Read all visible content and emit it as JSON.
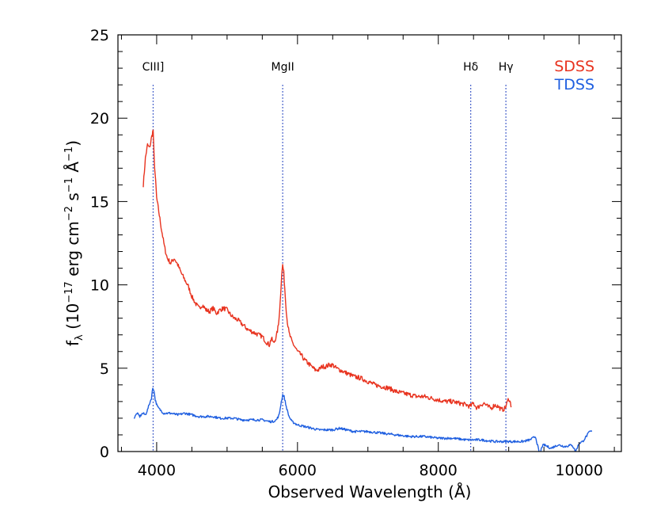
{
  "chart_data": {
    "type": "line",
    "xlabel": "Observed Wavelength (Å)",
    "ylabel": "fλ (10⁻¹⁷ erg cm⁻² s⁻¹ Å⁻¹)",
    "ylabel_parts": {
      "f": "f",
      "lambda_sub": "λ",
      "open": " (10",
      "exp1": "−17",
      "mid1": " erg cm",
      "exp2": "−2",
      "mid2": " s",
      "exp3": "−1",
      "mid3": " Å",
      "exp4": "−1",
      "close": ")"
    },
    "xlim": [
      3450,
      10600
    ],
    "ylim": [
      0,
      25
    ],
    "xticks": [
      4000,
      6000,
      8000,
      10000
    ],
    "xtick_labels": [
      "4000",
      "6000",
      "8000",
      "10000"
    ],
    "yticks": [
      0,
      5,
      10,
      15,
      20,
      25
    ],
    "ytick_labels": [
      "0",
      "5",
      "10",
      "15",
      "20",
      "25"
    ],
    "x_minor_step": 500,
    "y_minor_step": 1,
    "grid": false,
    "legend_position": "top-right",
    "reference_lines": [
      {
        "label": "CIII]",
        "x": 3950
      },
      {
        "label": "MgII",
        "x": 5790
      },
      {
        "label": "Hδ",
        "x": 8460
      },
      {
        "label": "Hγ",
        "x": 8960
      }
    ],
    "reference_line_color": "#1f3fbf",
    "series": [
      {
        "name": "SDSS",
        "color": "#e8331f",
        "x": [
          3810,
          3840,
          3870,
          3900,
          3930,
          3950,
          3965,
          3985,
          4000,
          4030,
          4070,
          4110,
          4150,
          4200,
          4250,
          4300,
          4350,
          4400,
          4450,
          4500,
          4550,
          4600,
          4650,
          4700,
          4750,
          4800,
          4850,
          4900,
          4950,
          5000,
          5050,
          5100,
          5150,
          5200,
          5250,
          5300,
          5350,
          5400,
          5450,
          5500,
          5550,
          5600,
          5630,
          5660,
          5700,
          5730,
          5755,
          5775,
          5790,
          5805,
          5825,
          5850,
          5880,
          5920,
          5960,
          6000,
          6050,
          6100,
          6150,
          6200,
          6250,
          6300,
          6350,
          6400,
          6450,
          6500,
          6550,
          6600,
          6650,
          6700,
          6750,
          6800,
          6900,
          7000,
          7100,
          7200,
          7300,
          7400,
          7500,
          7600,
          7700,
          7800,
          7900,
          8000,
          8100,
          8200,
          8300,
          8400,
          8450,
          8500,
          8550,
          8600,
          8650,
          8700,
          8750,
          8800,
          8850,
          8900,
          8950,
          9000,
          9040
        ],
        "values": [
          16.0,
          17.6,
          18.4,
          18.2,
          18.9,
          19.3,
          17.5,
          16.2,
          15.2,
          14.4,
          13.3,
          12.3,
          11.6,
          11.3,
          11.6,
          11.2,
          10.7,
          10.3,
          9.9,
          9.3,
          8.9,
          8.6,
          8.8,
          8.5,
          8.4,
          8.6,
          8.3,
          8.5,
          8.6,
          8.5,
          8.2,
          8.0,
          7.9,
          7.7,
          7.5,
          7.3,
          7.2,
          7.1,
          7.0,
          6.9,
          6.6,
          6.4,
          6.8,
          6.5,
          6.9,
          7.6,
          9.0,
          10.6,
          11.2,
          10.7,
          9.4,
          8.0,
          7.1,
          6.6,
          6.3,
          6.0,
          5.8,
          5.5,
          5.3,
          5.1,
          4.9,
          4.9,
          5.1,
          5.1,
          5.2,
          5.2,
          5.0,
          4.9,
          4.8,
          4.7,
          4.6,
          4.5,
          4.4,
          4.2,
          4.0,
          3.9,
          3.8,
          3.6,
          3.5,
          3.4,
          3.3,
          3.3,
          3.2,
          3.1,
          3.0,
          3.0,
          2.9,
          2.8,
          2.7,
          2.9,
          2.6,
          2.8,
          2.9,
          2.7,
          2.6,
          2.8,
          2.7,
          2.5,
          2.6,
          3.2,
          2.7
        ]
      },
      {
        "name": "TDSS",
        "color": "#1f5fe0",
        "x": [
          3680,
          3720,
          3760,
          3800,
          3840,
          3870,
          3900,
          3925,
          3945,
          3960,
          3980,
          4010,
          4050,
          4100,
          4200,
          4300,
          4400,
          4500,
          4600,
          4700,
          4800,
          4900,
          5000,
          5100,
          5200,
          5300,
          5400,
          5500,
          5600,
          5650,
          5700,
          5740,
          5770,
          5790,
          5810,
          5840,
          5880,
          5920,
          6000,
          6100,
          6200,
          6300,
          6400,
          6500,
          6600,
          6700,
          6800,
          6900,
          7000,
          7200,
          7400,
          7600,
          7800,
          8000,
          8200,
          8400,
          8600,
          8800,
          9000,
          9200,
          9300,
          9380,
          9420,
          9440,
          9470,
          9500,
          9550,
          9600,
          9700,
          9800,
          9900,
          9950,
          10000,
          10050,
          10100,
          10150,
          10180
        ],
        "values": [
          2.0,
          2.3,
          2.1,
          2.3,
          2.2,
          2.5,
          2.9,
          3.2,
          3.8,
          3.7,
          3.1,
          2.7,
          2.5,
          2.3,
          2.3,
          2.2,
          2.3,
          2.2,
          2.1,
          2.1,
          2.1,
          2.0,
          2.0,
          2.0,
          1.9,
          1.9,
          1.9,
          1.9,
          1.8,
          1.8,
          1.9,
          2.2,
          3.0,
          3.4,
          3.3,
          2.7,
          2.1,
          1.8,
          1.6,
          1.5,
          1.4,
          1.3,
          1.3,
          1.3,
          1.4,
          1.3,
          1.2,
          1.2,
          1.2,
          1.1,
          1.0,
          0.9,
          0.9,
          0.8,
          0.8,
          0.7,
          0.7,
          0.6,
          0.6,
          0.6,
          0.7,
          0.9,
          0.2,
          -0.3,
          0.3,
          0.4,
          0.3,
          0.2,
          0.4,
          0.3,
          0.4,
          0.0,
          0.5,
          0.6,
          0.9,
          1.2,
          1.2
        ]
      }
    ]
  }
}
